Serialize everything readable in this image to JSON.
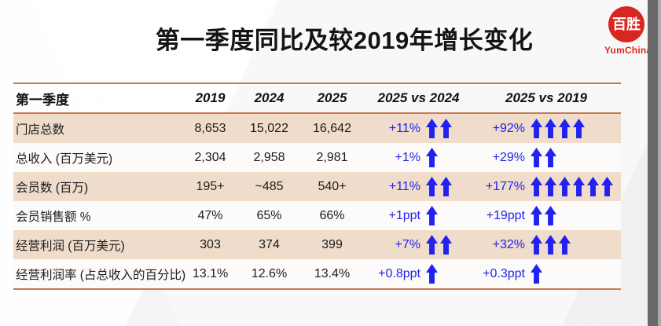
{
  "page": {
    "title": "第一季度同比及较2019年增长变化"
  },
  "logo": {
    "seal_text": "百胜",
    "brand": "YumChina"
  },
  "table": {
    "header": {
      "label": "第一季度",
      "cols": [
        "2019",
        "2024",
        "2025",
        "2025 vs 2024",
        "2025 vs 2019"
      ]
    },
    "rows": [
      {
        "label": "门店总数",
        "v2019": "8,653",
        "v2024": "15,022",
        "v2025": "16,642",
        "vs2024": {
          "text": "+11%",
          "arrows": 2
        },
        "vs2019": {
          "text": "+92%",
          "arrows": 4
        }
      },
      {
        "label": "总收入 (百万美元)",
        "v2019": "2,304",
        "v2024": "2,958",
        "v2025": "2,981",
        "vs2024": {
          "text": "+1%",
          "arrows": 1
        },
        "vs2019": {
          "text": "+29%",
          "arrows": 2
        }
      },
      {
        "label": "会员数 (百万)",
        "v2019": "195+",
        "v2024": "~485",
        "v2025": "540+",
        "vs2024": {
          "text": "+11%",
          "arrows": 2
        },
        "vs2019": {
          "text": "+177%",
          "arrows": 6
        }
      },
      {
        "label": "会员销售额 %",
        "v2019": "47%",
        "v2024": "65%",
        "v2025": "66%",
        "vs2024": {
          "text": "+1ppt",
          "arrows": 1
        },
        "vs2019": {
          "text": "+19ppt",
          "arrows": 2
        }
      },
      {
        "label": "经营利润 (百万美元)",
        "v2019": "303",
        "v2024": "374",
        "v2025": "399",
        "vs2024": {
          "text": "+7%",
          "arrows": 2
        },
        "vs2019": {
          "text": "+32%",
          "arrows": 3
        }
      },
      {
        "label": "经营利润率 (占总收入的百分比)",
        "v2019": "13.1%",
        "v2024": "12.6%",
        "v2025": "13.4%",
        "vs2024": {
          "text": "+0.8ppt",
          "arrows": 1
        },
        "vs2019": {
          "text": "+0.3ppt",
          "arrows": 1
        }
      }
    ]
  },
  "chart_data": {
    "type": "table",
    "title": "第一季度同比及较2019年增长变化",
    "columns": [
      "第一季度",
      "2019",
      "2024",
      "2025",
      "2025 vs 2024",
      "2025 vs 2019"
    ],
    "rows": [
      [
        "门店总数",
        "8,653",
        "15,022",
        "16,642",
        "+11%",
        "+92%"
      ],
      [
        "总收入 (百万美元)",
        "2,304",
        "2,958",
        "2,981",
        "+1%",
        "+29%"
      ],
      [
        "会员数 (百万)",
        "195+",
        "~485",
        "540+",
        "+11%",
        "+177%"
      ],
      [
        "会员销售额 %",
        "47%",
        "65%",
        "66%",
        "+1ppt",
        "+19ppt"
      ],
      [
        "经营利润 (百万美元)",
        "303",
        "374",
        "399",
        "+7%",
        "+32%"
      ],
      [
        "经营利润率 (占总收入的百分比)",
        "13.1%",
        "12.6%",
        "13.4%",
        "+0.8ppt",
        "+0.3ppt"
      ]
    ],
    "arrow_counts": {
      "vs2024": [
        2,
        1,
        2,
        1,
        2,
        1
      ],
      "vs2019": [
        4,
        2,
        6,
        2,
        3,
        1
      ]
    }
  },
  "colors": {
    "accent_line": "#c87a52",
    "row_shade": "#f0dcca",
    "delta_blue": "#2122ef",
    "logo_red": "#d8271e"
  }
}
